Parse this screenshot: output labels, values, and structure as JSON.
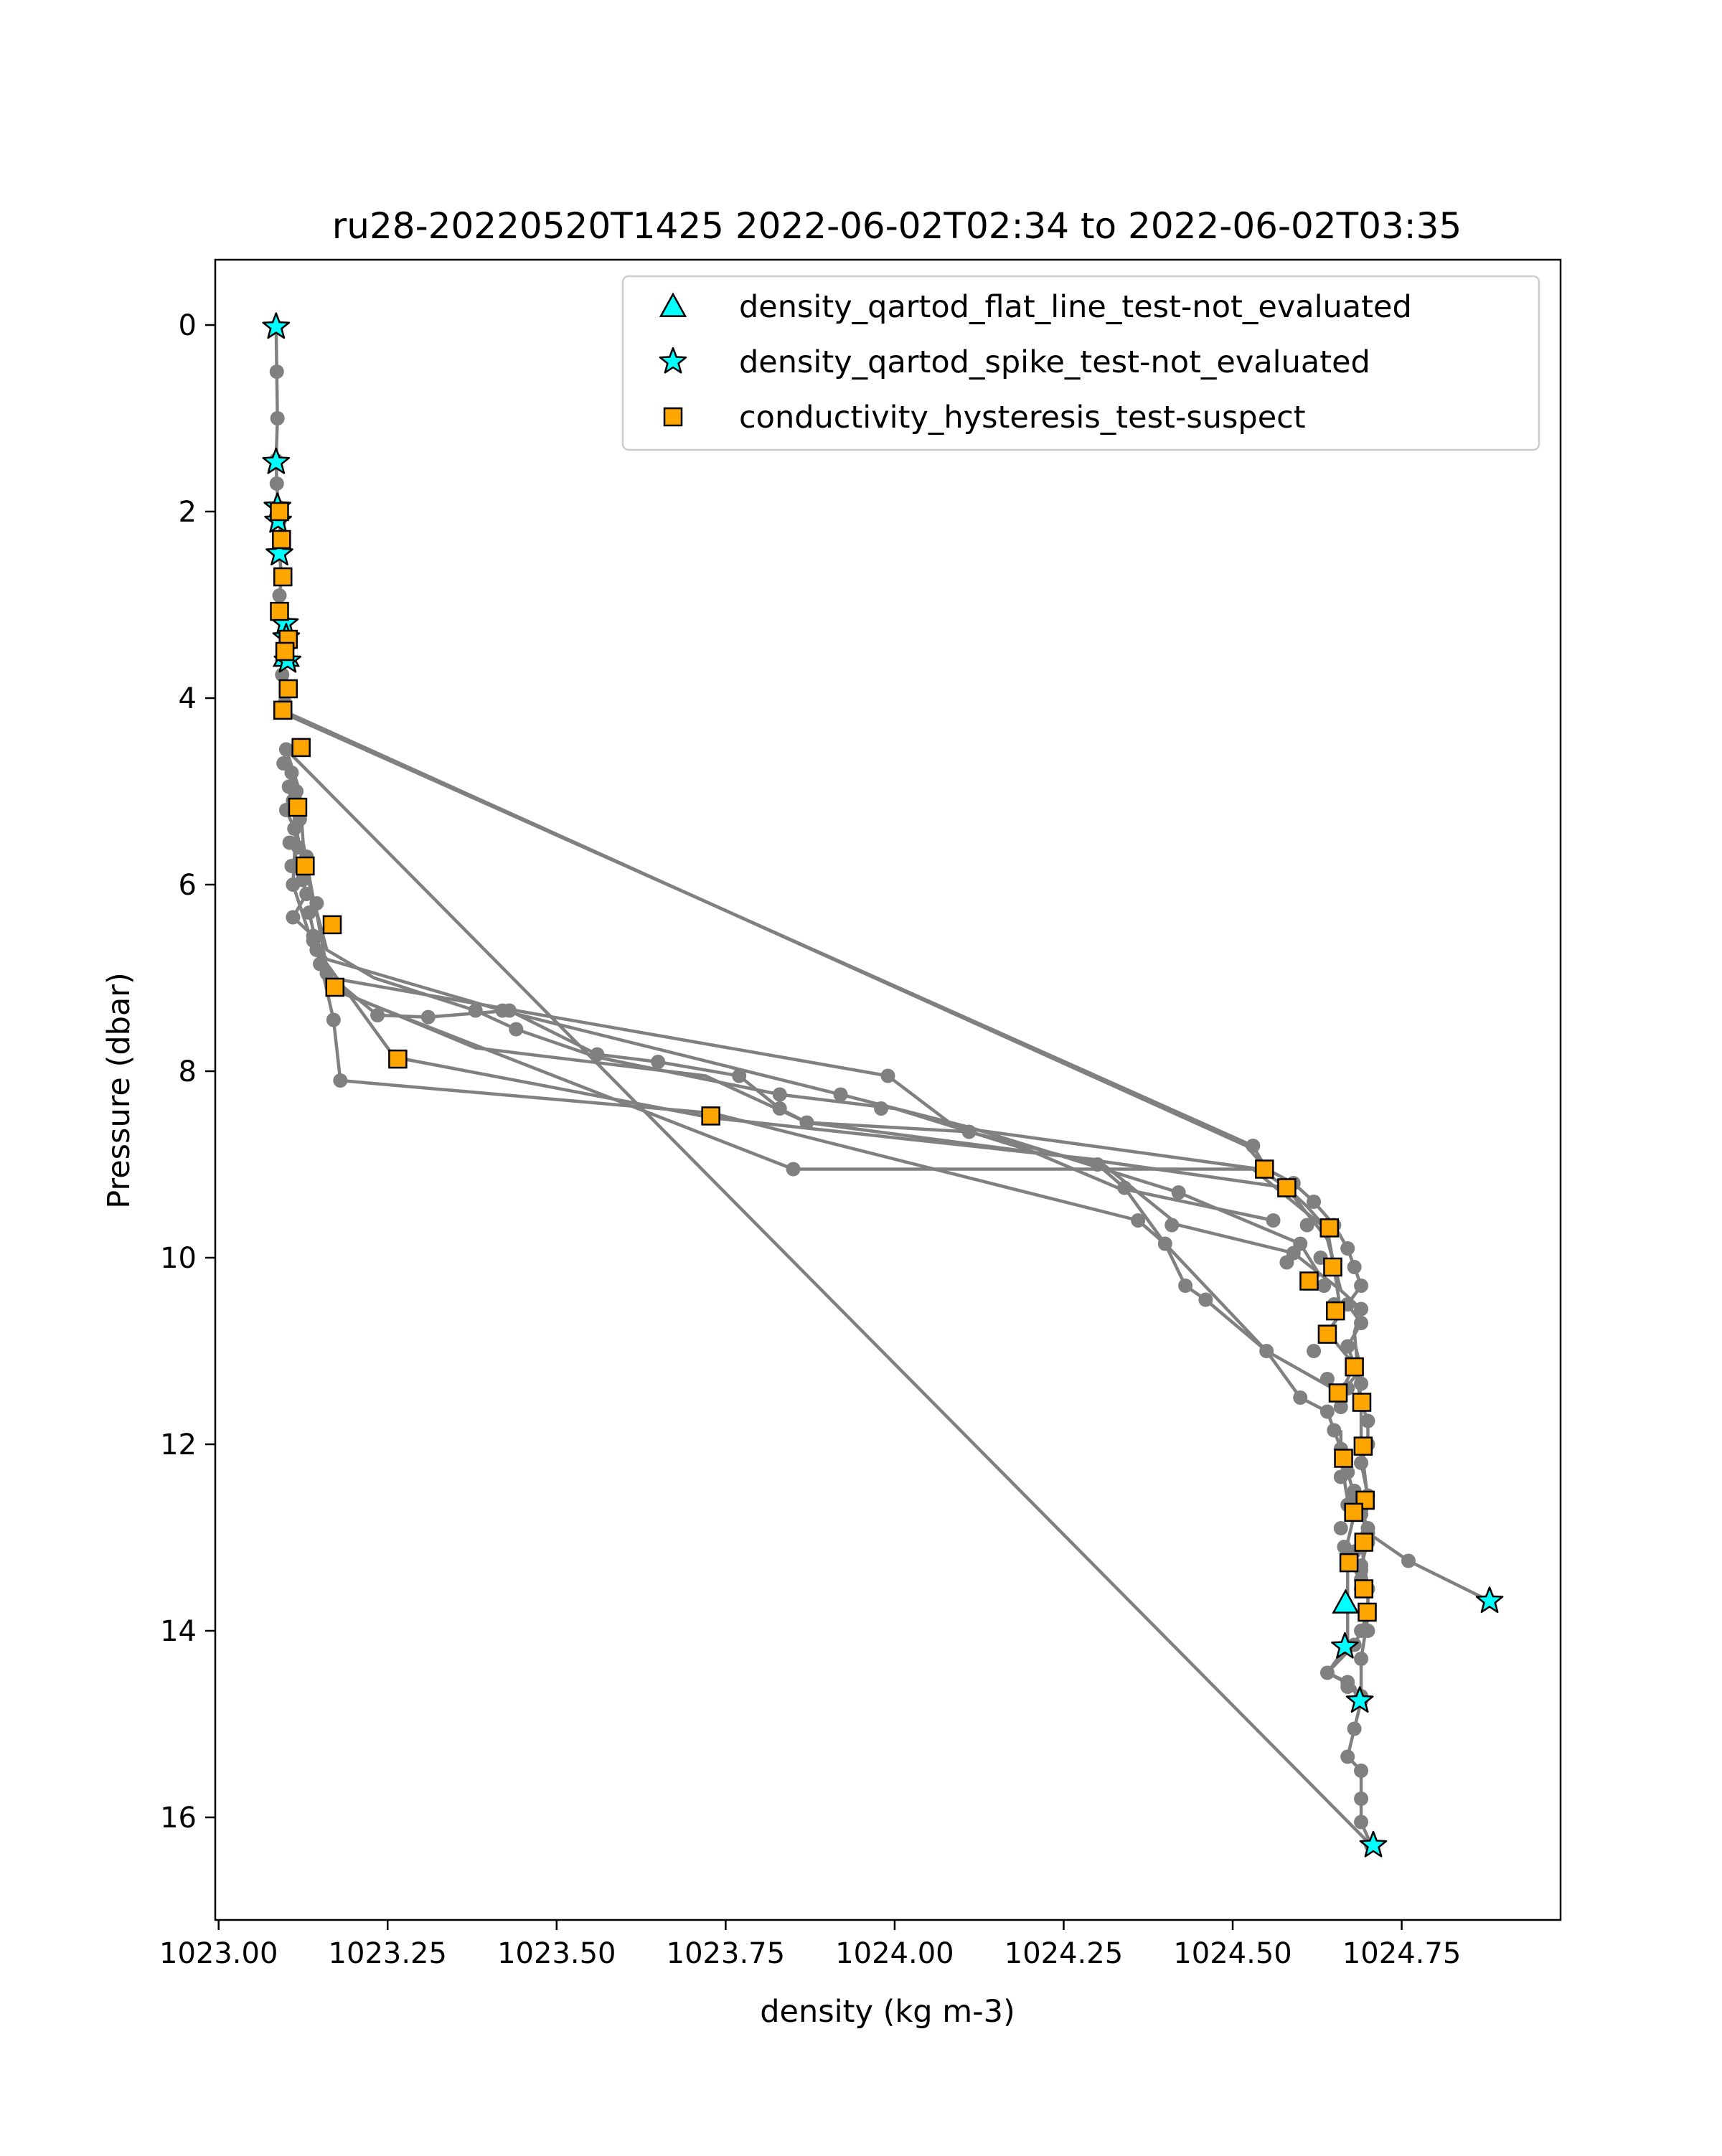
{
  "chart_data": {
    "type": "scatter",
    "title": "ru28-20220520T1425 2022-06-02T02:34 to 2022-06-02T03:35",
    "xlabel": "density (kg m-3)",
    "ylabel": "Pressure (dbar)",
    "xlim": [
      1022.995,
      1024.985
    ],
    "ylim": [
      17.1,
      -0.7
    ],
    "y_inverted": true,
    "xticks": [
      1023.0,
      1023.25,
      1023.5,
      1023.75,
      1024.0,
      1024.25,
      1024.5,
      1024.75
    ],
    "xtick_labels": [
      "1023.00",
      "1023.25",
      "1023.50",
      "1023.75",
      "1024.00",
      "1024.25",
      "1024.50",
      "1024.75"
    ],
    "yticks": [
      0,
      2,
      4,
      6,
      8,
      10,
      12,
      14,
      16
    ],
    "ytick_labels": [
      "0",
      "2",
      "4",
      "6",
      "8",
      "10",
      "12",
      "14",
      "16"
    ],
    "grid": false,
    "legend_position": "top-right",
    "profile": {
      "color": "#808080",
      "points": [
        [
          1023.085,
          0.02
        ],
        [
          1023.086,
          0.5
        ],
        [
          1023.087,
          1.0
        ],
        [
          1023.085,
          1.45
        ],
        [
          1023.086,
          1.7
        ],
        [
          1023.088,
          1.95
        ],
        [
          1023.09,
          2.1
        ],
        [
          1023.092,
          2.3
        ],
        [
          1023.09,
          2.45
        ],
        [
          1023.093,
          2.7
        ],
        [
          1023.09,
          2.9
        ],
        [
          1023.092,
          3.05
        ],
        [
          1023.098,
          3.2
        ],
        [
          1023.1,
          3.35
        ],
        [
          1023.096,
          3.5
        ],
        [
          1023.102,
          3.6
        ],
        [
          1023.094,
          3.75
        ],
        [
          1023.102,
          3.9
        ],
        [
          1023.098,
          4.05
        ],
        [
          1023.092,
          4.15
        ],
        [
          1024.53,
          8.8
        ],
        [
          1024.55,
          9.05
        ],
        [
          1024.59,
          9.2
        ],
        [
          1024.62,
          9.4
        ],
        [
          1024.65,
          9.65
        ],
        [
          1024.67,
          9.9
        ],
        [
          1024.68,
          10.1
        ],
        [
          1024.69,
          10.3
        ],
        [
          1024.67,
          10.5
        ],
        [
          1024.69,
          10.7
        ],
        [
          1024.67,
          10.95
        ],
        [
          1024.68,
          11.15
        ],
        [
          1024.69,
          11.55
        ],
        [
          1024.7,
          11.75
        ],
        [
          1024.7,
          12.0
        ],
        [
          1024.69,
          12.2
        ],
        [
          1024.7,
          12.55
        ],
        [
          1024.69,
          12.7
        ],
        [
          1024.7,
          12.9
        ],
        [
          1024.7,
          13.05
        ],
        [
          1024.69,
          13.3
        ],
        [
          1024.7,
          13.55
        ],
        [
          1024.7,
          13.8
        ],
        [
          1024.69,
          14.0
        ],
        [
          1024.68,
          14.15
        ],
        [
          1024.64,
          14.45
        ],
        [
          1024.67,
          14.55
        ],
        [
          1024.69,
          14.75
        ],
        [
          1024.68,
          15.05
        ],
        [
          1024.67,
          15.35
        ],
        [
          1024.69,
          15.5
        ],
        [
          1024.69,
          15.8
        ],
        [
          1024.69,
          16.05
        ],
        [
          1024.705,
          16.3
        ],
        [
          1023.1,
          4.55
        ],
        [
          1023.096,
          4.7
        ],
        [
          1023.108,
          4.8
        ],
        [
          1023.104,
          4.95
        ],
        [
          1023.11,
          5.1
        ],
        [
          1023.1,
          5.2
        ],
        [
          1023.112,
          5.4
        ],
        [
          1023.118,
          5.6
        ],
        [
          1023.108,
          5.8
        ],
        [
          1023.124,
          5.95
        ],
        [
          1023.13,
          6.1
        ],
        [
          1023.11,
          6.35
        ],
        [
          1023.14,
          6.55
        ],
        [
          1023.145,
          6.7
        ],
        [
          1023.15,
          6.85
        ],
        [
          1023.16,
          6.95
        ],
        [
          1023.235,
          7.4
        ],
        [
          1023.31,
          7.42
        ],
        [
          1023.43,
          7.35
        ],
        [
          1023.56,
          7.82
        ],
        [
          1023.65,
          7.9
        ],
        [
          1023.77,
          8.05
        ],
        [
          1023.83,
          8.4
        ],
        [
          1023.87,
          8.55
        ],
        [
          1024.11,
          8.65
        ],
        [
          1024.3,
          9.0
        ],
        [
          1024.34,
          9.25
        ],
        [
          1024.4,
          9.85
        ],
        [
          1024.43,
          10.3
        ],
        [
          1024.46,
          10.45
        ],
        [
          1024.55,
          11.0
        ],
        [
          1024.6,
          11.5
        ],
        [
          1024.64,
          11.65
        ],
        [
          1024.65,
          11.85
        ],
        [
          1024.66,
          12.05
        ],
        [
          1024.67,
          12.3
        ],
        [
          1024.68,
          12.55
        ],
        [
          1024.69,
          12.75
        ],
        [
          1024.7,
          12.95
        ],
        [
          1024.76,
          13.25
        ],
        [
          1024.88,
          13.68
        ]
      ],
      "extra_points": [
        [
          1023.18,
          8.1
        ],
        [
          1023.17,
          7.45
        ],
        [
          1023.145,
          6.2
        ],
        [
          1023.13,
          5.7
        ],
        [
          1023.115,
          5.0
        ],
        [
          1023.11,
          6.0
        ],
        [
          1023.105,
          5.55
        ],
        [
          1023.12,
          5.3
        ],
        [
          1023.134,
          6.3
        ],
        [
          1023.14,
          6.6
        ],
        [
          1023.38,
          7.35
        ],
        [
          1023.42,
          7.35
        ],
        [
          1023.44,
          7.55
        ],
        [
          1023.83,
          8.25
        ],
        [
          1023.92,
          8.25
        ],
        [
          1023.98,
          8.4
        ],
        [
          1023.99,
          8.05
        ],
        [
          1023.85,
          9.05
        ],
        [
          1024.36,
          9.6
        ],
        [
          1024.41,
          9.65
        ],
        [
          1024.42,
          9.3
        ],
        [
          1024.56,
          9.6
        ],
        [
          1024.58,
          10.05
        ],
        [
          1024.6,
          9.85
        ],
        [
          1024.61,
          9.65
        ],
        [
          1024.59,
          9.95
        ],
        [
          1024.63,
          10.0
        ],
        [
          1024.635,
          10.3
        ],
        [
          1024.65,
          10.5
        ],
        [
          1024.69,
          10.55
        ],
        [
          1024.62,
          11.0
        ],
        [
          1024.64,
          11.3
        ],
        [
          1024.66,
          11.6
        ],
        [
          1024.67,
          11.4
        ],
        [
          1024.69,
          11.35
        ],
        [
          1024.66,
          12.35
        ],
        [
          1024.68,
          12.5
        ],
        [
          1024.67,
          12.65
        ],
        [
          1024.66,
          12.9
        ],
        [
          1024.665,
          13.1
        ],
        [
          1024.68,
          13.15
        ],
        [
          1024.69,
          13.35
        ],
        [
          1024.69,
          13.55
        ],
        [
          1024.69,
          13.45
        ],
        [
          1024.69,
          14.7
        ],
        [
          1024.69,
          14.3
        ],
        [
          1024.7,
          14.0
        ],
        [
          1024.67,
          14.6
        ]
      ],
      "extra_segments": [
        [
          [
            1023.1,
            4.55
          ],
          [
            1023.12,
            5.0
          ],
          [
            1023.125,
            5.55
          ],
          [
            1023.14,
            6.15
          ],
          [
            1023.16,
            6.7
          ],
          [
            1023.23,
            7.0
          ],
          [
            1023.38,
            7.35
          ],
          [
            1023.44,
            7.55
          ],
          [
            1023.56,
            7.85
          ],
          [
            1023.83,
            8.25
          ],
          [
            1024.0,
            8.4
          ],
          [
            1024.2,
            8.85
          ],
          [
            1024.33,
            9.25
          ],
          [
            1024.56,
            9.6
          ]
        ],
        [
          [
            1023.11,
            4.8
          ],
          [
            1023.115,
            5.3
          ],
          [
            1023.11,
            6.0
          ],
          [
            1023.135,
            6.55
          ],
          [
            1023.16,
            6.8
          ],
          [
            1023.42,
            7.35
          ],
          [
            1023.92,
            8.25
          ],
          [
            1024.11,
            8.6
          ],
          [
            1024.42,
            9.3
          ],
          [
            1024.6,
            9.85
          ],
          [
            1024.63,
            10.2
          ]
        ],
        [
          [
            1023.105,
            5.0
          ],
          [
            1023.12,
            5.6
          ],
          [
            1023.145,
            6.3
          ],
          [
            1023.165,
            7.1
          ],
          [
            1023.38,
            7.75
          ],
          [
            1023.72,
            8.05
          ],
          [
            1023.87,
            8.55
          ],
          [
            1024.29,
            8.95
          ],
          [
            1024.58,
            9.25
          ],
          [
            1024.64,
            9.8
          ],
          [
            1024.66,
            10.35
          ]
        ],
        [
          [
            1023.134,
            6.3
          ],
          [
            1023.17,
            7.45
          ],
          [
            1023.18,
            8.1
          ],
          [
            1023.73,
            8.45
          ],
          [
            1024.36,
            9.6
          ],
          [
            1024.4,
            9.85
          ],
          [
            1024.55,
            11.0
          ],
          [
            1024.66,
            11.45
          ],
          [
            1024.69,
            11.2
          ],
          [
            1024.68,
            10.9
          ]
        ],
        [
          [
            1023.145,
            6.7
          ],
          [
            1023.26,
            7.85
          ],
          [
            1023.73,
            8.5
          ],
          [
            1024.3,
            8.95
          ],
          [
            1024.42,
            9.65
          ],
          [
            1024.59,
            9.95
          ],
          [
            1024.66,
            10.35
          ],
          [
            1024.69,
            10.55
          ],
          [
            1024.68,
            10.8
          ],
          [
            1024.69,
            11.55
          ]
        ],
        [
          [
            1023.16,
            7.1
          ],
          [
            1023.85,
            9.05
          ],
          [
            1024.53,
            9.05
          ],
          [
            1024.64,
            9.7
          ],
          [
            1024.65,
            10.1
          ],
          [
            1024.66,
            10.6
          ],
          [
            1024.64,
            10.8
          ],
          [
            1024.68,
            11.15
          ],
          [
            1024.66,
            11.45
          ]
        ],
        [
          [
            1023.165,
            7.0
          ],
          [
            1023.99,
            8.05
          ],
          [
            1024.09,
            8.6
          ],
          [
            1024.54,
            9.05
          ],
          [
            1024.58,
            9.25
          ],
          [
            1024.61,
            9.45
          ],
          [
            1024.64,
            9.7
          ]
        ],
        [
          [
            1023.1,
            4.15
          ],
          [
            1024.52,
            8.8
          ],
          [
            1024.55,
            9.05
          ]
        ],
        [
          [
            1024.66,
            11.85
          ],
          [
            1024.66,
            12.15
          ],
          [
            1024.67,
            12.6
          ],
          [
            1024.68,
            12.75
          ],
          [
            1024.67,
            13.05
          ],
          [
            1024.67,
            13.3
          ],
          [
            1024.67,
            13.7
          ],
          [
            1024.67,
            14.15
          ],
          [
            1024.64,
            14.45
          ],
          [
            1024.68,
            14.6
          ],
          [
            1024.69,
            14.75
          ]
        ],
        [
          [
            1024.69,
            11.55
          ],
          [
            1024.69,
            12.0
          ],
          [
            1024.7,
            12.6
          ],
          [
            1024.69,
            13.05
          ],
          [
            1024.7,
            13.55
          ],
          [
            1024.7,
            13.85
          ],
          [
            1024.69,
            14.3
          ],
          [
            1024.69,
            14.75
          ]
        ]
      ]
    },
    "series": [
      {
        "name": "density_qartod_flat_line_test-not_evaluated",
        "marker": "triangle",
        "color": "#00ffff",
        "points": [
          [
            1023.1,
            3.55
          ],
          [
            1024.667,
            13.7
          ]
        ]
      },
      {
        "name": "density_qartod_spike_test-not_evaluated",
        "marker": "star",
        "color": "#00ffff",
        "points": [
          [
            1023.085,
            0.02
          ],
          [
            1023.085,
            1.47
          ],
          [
            1023.087,
            1.95
          ],
          [
            1023.088,
            2.1
          ],
          [
            1023.09,
            2.45
          ],
          [
            1023.098,
            3.2
          ],
          [
            1023.1,
            3.35
          ],
          [
            1023.102,
            3.6
          ],
          [
            1024.88,
            13.68
          ],
          [
            1024.666,
            14.17
          ],
          [
            1024.688,
            14.75
          ],
          [
            1024.708,
            16.3
          ]
        ]
      },
      {
        "name": "conductivity_hysteresis_test-suspect",
        "marker": "square",
        "color": "#ffa500",
        "points": [
          [
            1023.09,
            2.0
          ],
          [
            1023.093,
            2.3
          ],
          [
            1023.095,
            2.7
          ],
          [
            1023.09,
            3.07
          ],
          [
            1023.103,
            3.37
          ],
          [
            1023.098,
            3.5
          ],
          [
            1023.103,
            3.9
          ],
          [
            1023.095,
            4.13
          ],
          [
            1023.122,
            4.53
          ],
          [
            1023.117,
            5.17
          ],
          [
            1023.128,
            5.8
          ],
          [
            1023.168,
            6.43
          ],
          [
            1023.172,
            7.1
          ],
          [
            1023.265,
            7.87
          ],
          [
            1023.728,
            8.48
          ],
          [
            1024.547,
            9.05
          ],
          [
            1024.58,
            9.25
          ],
          [
            1024.643,
            9.68
          ],
          [
            1024.648,
            10.1
          ],
          [
            1024.613,
            10.25
          ],
          [
            1024.652,
            10.57
          ],
          [
            1024.64,
            10.82
          ],
          [
            1024.68,
            11.17
          ],
          [
            1024.656,
            11.45
          ],
          [
            1024.691,
            11.55
          ],
          [
            1024.693,
            12.02
          ],
          [
            1024.664,
            12.15
          ],
          [
            1024.696,
            12.6
          ],
          [
            1024.679,
            12.73
          ],
          [
            1024.694,
            13.05
          ],
          [
            1024.672,
            13.27
          ],
          [
            1024.694,
            13.55
          ],
          [
            1024.699,
            13.8
          ]
        ]
      }
    ]
  }
}
